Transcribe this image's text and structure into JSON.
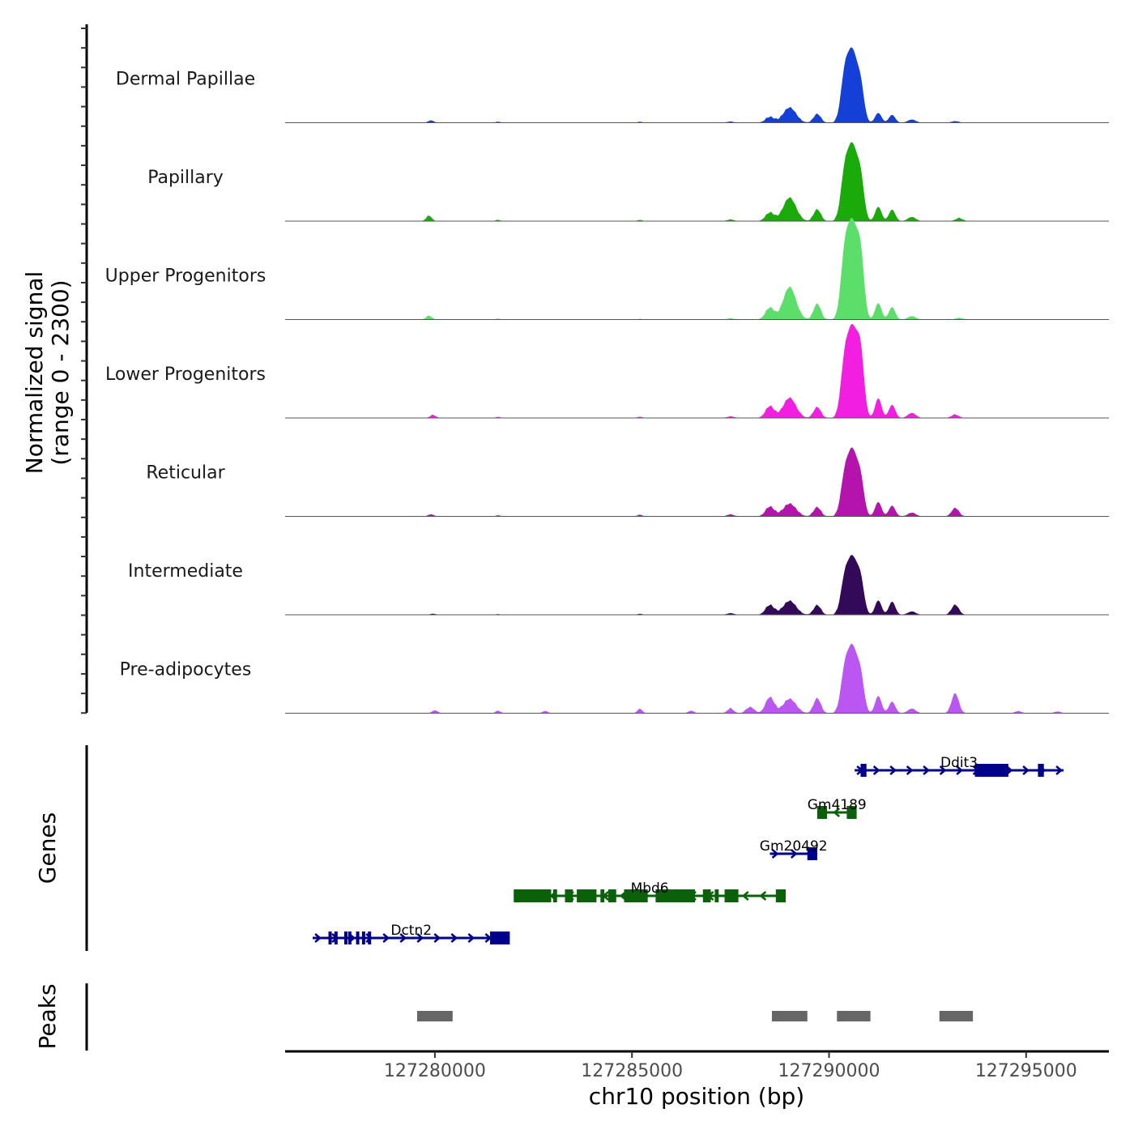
{
  "chart_data": {
    "type": "area",
    "xlabel": "chr10 position (bp)",
    "ylabel_line1": "Normalized signal",
    "ylabel_line2": "(range 0 - 2300)",
    "genes_label": "Genes",
    "peaks_label": "Peaks",
    "xlim": [
      127276200,
      127297100
    ],
    "ylim": [
      0,
      2300
    ],
    "x_ticks": [
      127280000,
      127285000,
      127290000,
      127295000
    ],
    "x_tick_labels": [
      "127280000",
      "127285000",
      "127290000",
      "127295000"
    ],
    "series": [
      {
        "name": "Dermal Papillae",
        "color": "#1540d8",
        "scale": 0.95,
        "peaks": [
          [
            127279900,
            60,
            70
          ],
          [
            127281600,
            25,
            60
          ],
          [
            127285200,
            25,
            60
          ],
          [
            127287500,
            30,
            80
          ],
          [
            127288500,
            140,
            110
          ],
          [
            127289000,
            380,
            160
          ],
          [
            127289700,
            220,
            90
          ],
          [
            127290400,
            1200,
            100
          ],
          [
            127290600,
            1650,
            110
          ],
          [
            127290800,
            900,
            90
          ],
          [
            127291250,
            250,
            80
          ],
          [
            127291600,
            200,
            80
          ],
          [
            127292100,
            80,
            100
          ],
          [
            127293200,
            40,
            90
          ]
        ]
      },
      {
        "name": "Papillary",
        "color": "#1aaa0a",
        "scale": 1.0,
        "peaks": [
          [
            127279850,
            130,
            70
          ],
          [
            127281600,
            30,
            60
          ],
          [
            127285200,
            30,
            60
          ],
          [
            127287500,
            40,
            80
          ],
          [
            127288500,
            200,
            110
          ],
          [
            127289000,
            560,
            160
          ],
          [
            127289700,
            280,
            90
          ],
          [
            127290400,
            1150,
            100
          ],
          [
            127290600,
            1650,
            110
          ],
          [
            127290800,
            1000,
            90
          ],
          [
            127291250,
            350,
            80
          ],
          [
            127291600,
            280,
            80
          ],
          [
            127292100,
            100,
            100
          ],
          [
            127293300,
            70,
            90
          ]
        ]
      },
      {
        "name": "Upper Progenitors",
        "color": "#5bde6a",
        "scale": 1.0,
        "peaks": [
          [
            127279850,
            90,
            70
          ],
          [
            127281600,
            20,
            60
          ],
          [
            127285200,
            20,
            60
          ],
          [
            127287500,
            30,
            80
          ],
          [
            127288500,
            280,
            110
          ],
          [
            127289000,
            780,
            160
          ],
          [
            127289700,
            380,
            90
          ],
          [
            127290400,
            1550,
            100
          ],
          [
            127290600,
            2100,
            110
          ],
          [
            127290800,
            1500,
            90
          ],
          [
            127291250,
            400,
            80
          ],
          [
            127291600,
            300,
            80
          ],
          [
            127292100,
            80,
            100
          ],
          [
            127293300,
            40,
            90
          ]
        ]
      },
      {
        "name": "Lower Progenitors",
        "color": "#f21ee0",
        "scale": 1.0,
        "peaks": [
          [
            127279950,
            70,
            70
          ],
          [
            127281600,
            25,
            60
          ],
          [
            127285200,
            30,
            60
          ],
          [
            127287500,
            40,
            80
          ],
          [
            127288500,
            280,
            110
          ],
          [
            127289000,
            480,
            160
          ],
          [
            127289700,
            260,
            90
          ],
          [
            127290400,
            1350,
            100
          ],
          [
            127290600,
            1950,
            110
          ],
          [
            127290800,
            1500,
            90
          ],
          [
            127291250,
            480,
            80
          ],
          [
            127291600,
            320,
            80
          ],
          [
            127292100,
            120,
            100
          ],
          [
            127293200,
            80,
            90
          ]
        ]
      },
      {
        "name": "Reticular",
        "color": "#b514ac",
        "scale": 1.0,
        "peaks": [
          [
            127279900,
            50,
            70
          ],
          [
            127281600,
            25,
            60
          ],
          [
            127285200,
            40,
            60
          ],
          [
            127287500,
            50,
            80
          ],
          [
            127288500,
            230,
            110
          ],
          [
            127289000,
            300,
            160
          ],
          [
            127289700,
            220,
            90
          ],
          [
            127290400,
            950,
            100
          ],
          [
            127290600,
            1450,
            110
          ],
          [
            127290800,
            850,
            90
          ],
          [
            127291250,
            350,
            80
          ],
          [
            127291600,
            260,
            80
          ],
          [
            127292100,
            90,
            100
          ],
          [
            127293200,
            200,
            90
          ]
        ]
      },
      {
        "name": "Intermediate",
        "color": "#330a5a",
        "scale": 1.0,
        "peaks": [
          [
            127279950,
            25,
            70
          ],
          [
            127281600,
            15,
            60
          ],
          [
            127285200,
            25,
            60
          ],
          [
            127287500,
            40,
            80
          ],
          [
            127288500,
            230,
            110
          ],
          [
            127289000,
            330,
            160
          ],
          [
            127289700,
            230,
            90
          ],
          [
            127290400,
            850,
            100
          ],
          [
            127290600,
            1250,
            110
          ],
          [
            127290800,
            800,
            90
          ],
          [
            127291250,
            350,
            80
          ],
          [
            127291600,
            320,
            80
          ],
          [
            127292100,
            80,
            100
          ],
          [
            127293200,
            240,
            90
          ]
        ]
      },
      {
        "name": "Pre-adipocytes",
        "color": "#bb56f2",
        "scale": 1.0,
        "peaks": [
          [
            127280000,
            70,
            70
          ],
          [
            127281600,
            60,
            60
          ],
          [
            127282800,
            55,
            60
          ],
          [
            127285200,
            110,
            60
          ],
          [
            127286500,
            60,
            70
          ],
          [
            127287500,
            110,
            80
          ],
          [
            127288000,
            140,
            100
          ],
          [
            127288500,
            380,
            110
          ],
          [
            127289000,
            340,
            160
          ],
          [
            127289700,
            360,
            90
          ],
          [
            127290400,
            1000,
            100
          ],
          [
            127290600,
            1450,
            110
          ],
          [
            127290800,
            850,
            90
          ],
          [
            127291250,
            420,
            80
          ],
          [
            127291600,
            280,
            80
          ],
          [
            127292100,
            110,
            100
          ],
          [
            127293200,
            480,
            90
          ],
          [
            127294800,
            50,
            80
          ],
          [
            127295800,
            40,
            80
          ]
        ]
      }
    ],
    "genes": [
      {
        "name": "Mbd6",
        "start": 127282000,
        "end": 127288900,
        "strand": "-",
        "row": 3,
        "color": "#0a610a",
        "exons": [
          [
            127282000,
            127282950
          ],
          [
            127283000,
            127283100
          ],
          [
            127283300,
            127283500
          ],
          [
            127283600,
            127284100
          ],
          [
            127284200,
            127284300
          ],
          [
            127284400,
            127284600
          ],
          [
            127284800,
            127285400
          ],
          [
            127285600,
            127286600
          ],
          [
            127286800,
            127287000
          ],
          [
            127287100,
            127287200
          ],
          [
            127287350,
            127287700
          ],
          [
            127288650,
            127288900
          ]
        ]
      },
      {
        "name": "Dctn2",
        "start": 127276900,
        "end": 127281900,
        "strand": "+",
        "row": 4,
        "color": "#00008b",
        "exons": [
          [
            127277300,
            127277350
          ],
          [
            127277450,
            127277500
          ],
          [
            127277700,
            127277750
          ],
          [
            127277800,
            127277850
          ],
          [
            127278000,
            127278050
          ],
          [
            127278150,
            127278200
          ],
          [
            127278300,
            127278350
          ],
          [
            127281400,
            127281900
          ]
        ]
      },
      {
        "name": "Gm20492",
        "start": 127288500,
        "end": 127289700,
        "strand": "+",
        "row": 2,
        "color": "#00008b",
        "exons": [
          [
            127289450,
            127289700
          ]
        ]
      },
      {
        "name": "Gm4189",
        "start": 127289700,
        "end": 127290700,
        "strand": "-",
        "row": 1,
        "color": "#0a610a",
        "exons": [
          [
            127289700,
            127289950
          ],
          [
            127290450,
            127290700
          ]
        ]
      },
      {
        "name": "Ddit3",
        "start": 127290650,
        "end": 127295950,
        "strand": "+",
        "row": 0,
        "color": "#00008b",
        "exons": [
          [
            127290800,
            127290950
          ],
          [
            127293700,
            127294550
          ],
          [
            127295300,
            127295450
          ]
        ]
      }
    ],
    "peak_regions": [
      [
        127279550,
        127280450
      ],
      [
        127288550,
        127289450
      ],
      [
        127290200,
        127291050
      ],
      [
        127292800,
        127293650
      ]
    ]
  }
}
